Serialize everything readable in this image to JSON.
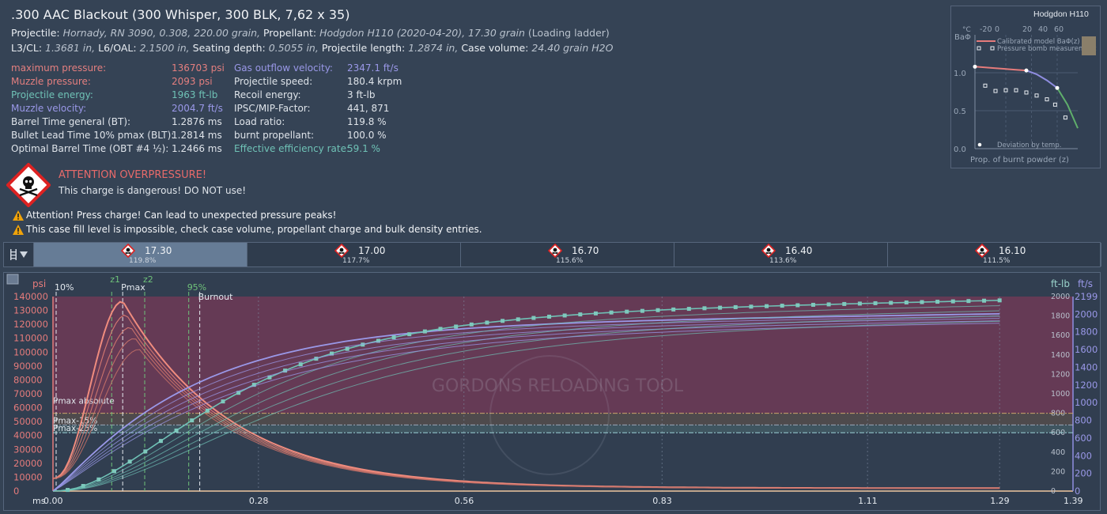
{
  "header": {
    "title": ".300 AAC Blackout (300 Whisper, 300 BLK, 7,62 x 35)",
    "line1": {
      "projectile_label": "Projectile:",
      "projectile_value": "Hornady, RN 3090, 0.308, 220.00 grain,",
      "propellant_label": "Propellant:",
      "propellant_value": "Hodgdon H110 (2020-04-20), 17.30 grain",
      "note": "(Loading ladder)"
    },
    "line2": {
      "l3_label": "L3/CL:",
      "l3_value": "1.3681 in,",
      "l6_label": "L6/OAL:",
      "l6_value": "2.1500 in,",
      "seating_label": "Seating depth:",
      "seating_value": "0.5055 in,",
      "plen_label": "Projectile length:",
      "plen_value": "1.2874 in,",
      "case_label": "Case volume:",
      "case_value": "24.40 grain H2O"
    }
  },
  "results_left": [
    {
      "label": "maximum pressure:",
      "value": "136703 psi",
      "color": "pink"
    },
    {
      "label": "Muzzle pressure:",
      "value": "2093 psi",
      "color": "pink"
    },
    {
      "label": "Projectile energy:",
      "value": "1963 ft-lb",
      "color": "teal"
    },
    {
      "label": "Muzzle velocity:",
      "value": "2004.7 ft/s",
      "color": "violet"
    },
    {
      "label": "Barrel Time general (BT):",
      "value": "1.2876 ms",
      "color": "plain"
    },
    {
      "label": "Bullet Lead Time 10% pmax (BLT):",
      "value": "1.2814 ms",
      "color": "plain"
    },
    {
      "label": "Optimal Barrel Time (OBT #4 ½):",
      "value": "1.2466 ms",
      "color": "plain"
    }
  ],
  "results_right": [
    {
      "label": "Gas outflow velocity:",
      "value": "2347.1 ft/s",
      "color": "violet"
    },
    {
      "label": "Projectile speed:",
      "value": "180.4 krpm",
      "color": "plain"
    },
    {
      "label": "Recoil energy:",
      "value": "3 ft-lb",
      "color": "plain"
    },
    {
      "label": "IPSC/MIP-Factor:",
      "value": "441, 871",
      "color": "plain"
    },
    {
      "label": "Load ratio:",
      "value": "119.8 %",
      "color": "plain"
    },
    {
      "label": "burnt propellant:",
      "value": "100.0 %",
      "color": "plain"
    },
    {
      "label": "Effective efficiency rate:",
      "value": "59.1 %",
      "color": "teal"
    }
  ],
  "attention": {
    "title": "ATTENTION OVERPRESSURE!",
    "subtitle": "This charge is dangerous! DO NOT use!",
    "warnings": [
      "Attention! Press charge! Can lead to unexpected pressure peaks!",
      "This case fill level is impossible, check case volume, propellant charge and bulk density entries."
    ]
  },
  "inset": {
    "title": "Hodgdon H110",
    "y_label": "BaΦ",
    "x_label": "Prop. of burnt powder (z)",
    "temp_label": "°C",
    "temp_ticks": [
      "-20",
      "0",
      "20",
      "40",
      "60"
    ],
    "y_ticks": [
      "1.0",
      "0.5",
      "0.0"
    ],
    "legend": [
      "Calibrated model BaΦ(z)",
      "Pressure bomb measurement",
      "Deviation by temp."
    ],
    "curve": {
      "z": [
        0.0,
        0.1,
        0.2,
        0.3,
        0.4,
        0.5,
        0.6,
        0.7,
        0.8,
        0.9,
        1.0
      ],
      "baphi": [
        1.08,
        1.07,
        1.06,
        1.05,
        1.04,
        1.03,
        0.98,
        0.9,
        0.8,
        0.58,
        0.27
      ]
    },
    "measurements": {
      "z": [
        0.1,
        0.2,
        0.3,
        0.4,
        0.5,
        0.6,
        0.7,
        0.78,
        0.88
      ],
      "baphi": [
        0.83,
        0.76,
        0.77,
        0.77,
        0.74,
        0.7,
        0.65,
        0.58,
        0.41
      ]
    }
  },
  "ladder": {
    "items": [
      {
        "value": "17.30",
        "ratio": "119.8%",
        "active": true
      },
      {
        "value": "17.00",
        "ratio": "117.7%",
        "active": false
      },
      {
        "value": "16.70",
        "ratio": "115.6%",
        "active": false
      },
      {
        "value": "16.40",
        "ratio": "113.6%",
        "active": false
      },
      {
        "value": "16.10",
        "ratio": "111.5%",
        "active": false
      }
    ]
  },
  "chart_data": {
    "type": "line",
    "x_unit": "ms",
    "x_ticks": [
      "0.00",
      "0.28",
      "0.56",
      "0.83",
      "1.11",
      "1.29",
      "1.39"
    ],
    "xlim": [
      0,
      1.39
    ],
    "left_axis": {
      "unit": "psi",
      "ylim": [
        0,
        140000
      ],
      "ticks": [
        0,
        10000,
        20000,
        30000,
        40000,
        50000,
        60000,
        70000,
        80000,
        90000,
        100000,
        110000,
        120000,
        130000,
        140000
      ]
    },
    "right_axis_energy": {
      "unit": "ft-lb",
      "ylim": [
        0,
        2000
      ],
      "ticks": [
        0,
        200,
        400,
        600,
        800,
        1000,
        1200,
        1400,
        1600,
        1800,
        2000
      ]
    },
    "right_axis_velocity": {
      "unit": "ft/s",
      "ylim": [
        0,
        2199
      ],
      "ticks": [
        0,
        200,
        400,
        600,
        800,
        1000,
        1200,
        1400,
        1600,
        1800,
        2000,
        2199
      ]
    },
    "markers": [
      {
        "label": "10%",
        "x": 0.0
      },
      {
        "label": "z1",
        "x": 0.08
      },
      {
        "label": "Pmax",
        "x": 0.095
      },
      {
        "label": "z2",
        "x": 0.125
      },
      {
        "label": "95%",
        "x": 0.185
      },
      {
        "label": "Burnout",
        "x": 0.2
      }
    ],
    "thresholds": [
      {
        "label": "Pmax absolute",
        "value": 56000
      },
      {
        "label": "Pmax-15%",
        "value": 47600
      },
      {
        "label": "Pmax-25%",
        "value": 42000
      }
    ],
    "series": [
      {
        "name": "17.30",
        "peak_psi": 136703,
        "peak_time": 0.095,
        "muzzle_psi": 2093,
        "energy_end": 1963,
        "velocity_end": 2004.7
      },
      {
        "name": "17.00",
        "peak_psi": 127000,
        "peak_time": 0.1,
        "muzzle_psi": 2000,
        "energy_end": 1910,
        "velocity_end": 1980
      },
      {
        "name": "16.70",
        "peak_psi": 118000,
        "peak_time": 0.106,
        "muzzle_psi": 1950,
        "energy_end": 1860,
        "velocity_end": 1955
      },
      {
        "name": "16.40",
        "peak_psi": 110000,
        "peak_time": 0.112,
        "muzzle_psi": 1900,
        "energy_end": 1810,
        "velocity_end": 1930
      },
      {
        "name": "16.10",
        "peak_psi": 102000,
        "peak_time": 0.118,
        "muzzle_psi": 1850,
        "energy_end": 1760,
        "velocity_end": 1905
      }
    ],
    "watermark": "GORDONS RELOADING TOOL"
  }
}
